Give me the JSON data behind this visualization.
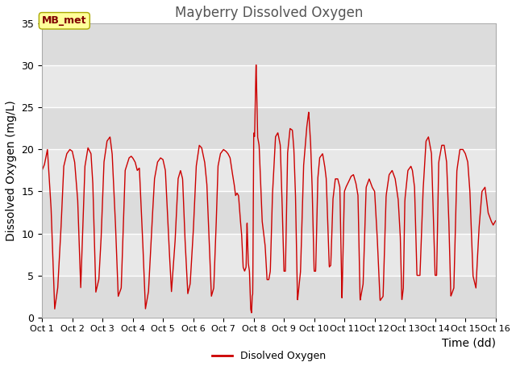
{
  "title": "Mayberry Dissolved Oxygen",
  "xlabel": "Time (dd)",
  "ylabel": "Dissolved Oxygen (mg/L)",
  "legend_label": "Disolved Oxygen",
  "station_label": "MB_met",
  "xlim": [
    1,
    16
  ],
  "ylim": [
    0,
    35
  ],
  "yticks": [
    0,
    5,
    10,
    15,
    20,
    25,
    30,
    35
  ],
  "xtick_positions": [
    1,
    2,
    3,
    4,
    5,
    6,
    7,
    8,
    9,
    10,
    11,
    12,
    13,
    14,
    15,
    16
  ],
  "xtick_labels": [
    "Oct 1",
    "Oct 2",
    "Oct 3",
    "Oct 4",
    "Oct 5",
    "Oct 6",
    "Oct 7",
    "Oct 8",
    "Oct 9",
    "Oct 10",
    "Oct 11",
    "Oct 12",
    "Oct 13",
    "Oct 14",
    "Oct 15",
    "Oct 16"
  ],
  "line_color": "#cc0000",
  "background_color": "#ffffff",
  "plot_bg_color": "#e8e8e8",
  "grid_color": "#ffffff",
  "band_color_light": "#dcdcdc",
  "band_color_dark": "#e8e8e8",
  "station_box_color": "#ffff99",
  "station_text_color": "#800000",
  "title_fontsize": 12,
  "axis_label_fontsize": 10,
  "tick_fontsize": 9,
  "t_points": [
    [
      1.0,
      17.5
    ],
    [
      1.08,
      18.2
    ],
    [
      1.18,
      20.0
    ],
    [
      1.3,
      13.0
    ],
    [
      1.42,
      1.0
    ],
    [
      1.52,
      3.5
    ],
    [
      1.62,
      10.0
    ],
    [
      1.72,
      18.0
    ],
    [
      1.82,
      19.5
    ],
    [
      1.92,
      20.0
    ],
    [
      2.0,
      19.8
    ],
    [
      2.08,
      18.5
    ],
    [
      2.18,
      14.0
    ],
    [
      2.28,
      3.5
    ],
    [
      2.42,
      18.0
    ],
    [
      2.52,
      20.2
    ],
    [
      2.62,
      19.5
    ],
    [
      2.68,
      16.0
    ],
    [
      2.78,
      3.0
    ],
    [
      2.88,
      4.5
    ],
    [
      2.95,
      9.0
    ],
    [
      3.05,
      18.5
    ],
    [
      3.15,
      21.0
    ],
    [
      3.25,
      21.5
    ],
    [
      3.32,
      19.5
    ],
    [
      3.42,
      12.0
    ],
    [
      3.52,
      2.5
    ],
    [
      3.62,
      3.5
    ],
    [
      3.75,
      17.5
    ],
    [
      3.88,
      19.0
    ],
    [
      3.95,
      19.2
    ],
    [
      4.0,
      19.0
    ],
    [
      4.08,
      18.5
    ],
    [
      4.15,
      17.5
    ],
    [
      4.22,
      17.8
    ],
    [
      4.32,
      10.0
    ],
    [
      4.42,
      1.0
    ],
    [
      4.52,
      3.0
    ],
    [
      4.62,
      10.0
    ],
    [
      4.72,
      16.5
    ],
    [
      4.82,
      18.5
    ],
    [
      4.92,
      19.0
    ],
    [
      5.0,
      18.8
    ],
    [
      5.08,
      17.5
    ],
    [
      5.18,
      10.0
    ],
    [
      5.28,
      3.0
    ],
    [
      5.4,
      9.0
    ],
    [
      5.5,
      16.5
    ],
    [
      5.58,
      17.5
    ],
    [
      5.65,
      16.5
    ],
    [
      5.72,
      10.0
    ],
    [
      5.82,
      2.8
    ],
    [
      5.9,
      4.0
    ],
    [
      6.0,
      10.0
    ],
    [
      6.1,
      18.0
    ],
    [
      6.2,
      20.5
    ],
    [
      6.28,
      20.2
    ],
    [
      6.38,
      18.5
    ],
    [
      6.45,
      16.0
    ],
    [
      6.52,
      10.0
    ],
    [
      6.6,
      2.5
    ],
    [
      6.68,
      3.5
    ],
    [
      6.75,
      10.0
    ],
    [
      6.82,
      18.0
    ],
    [
      6.9,
      19.5
    ],
    [
      7.0,
      20.0
    ],
    [
      7.08,
      19.8
    ],
    [
      7.15,
      19.5
    ],
    [
      7.22,
      19.0
    ],
    [
      7.28,
      17.5
    ],
    [
      7.35,
      16.0
    ],
    [
      7.4,
      14.5
    ],
    [
      7.45,
      14.8
    ],
    [
      7.5,
      14.5
    ],
    [
      7.55,
      12.0
    ],
    [
      7.6,
      10.0
    ],
    [
      7.65,
      6.0
    ],
    [
      7.7,
      5.5
    ],
    [
      7.75,
      6.0
    ],
    [
      7.78,
      11.5
    ],
    [
      7.82,
      6.5
    ],
    [
      7.86,
      5.5
    ],
    [
      7.9,
      1.0
    ],
    [
      7.93,
      0.5
    ],
    [
      7.95,
      2.5
    ],
    [
      7.97,
      2.8
    ],
    [
      8.0,
      22.0
    ],
    [
      8.03,
      21.5
    ],
    [
      8.08,
      30.5
    ],
    [
      8.13,
      21.5
    ],
    [
      8.18,
      20.5
    ],
    [
      8.28,
      11.5
    ],
    [
      8.38,
      8.5
    ],
    [
      8.44,
      4.5
    ],
    [
      8.5,
      4.5
    ],
    [
      8.55,
      5.5
    ],
    [
      8.62,
      14.5
    ],
    [
      8.72,
      21.5
    ],
    [
      8.8,
      22.0
    ],
    [
      8.88,
      20.5
    ],
    [
      8.93,
      15.0
    ],
    [
      9.0,
      5.5
    ],
    [
      9.05,
      5.5
    ],
    [
      9.12,
      19.5
    ],
    [
      9.2,
      22.5
    ],
    [
      9.28,
      22.3
    ],
    [
      9.33,
      20.0
    ],
    [
      9.38,
      15.0
    ],
    [
      9.45,
      2.0
    ],
    [
      9.55,
      5.5
    ],
    [
      9.65,
      18.0
    ],
    [
      9.75,
      22.5
    ],
    [
      9.82,
      24.5
    ],
    [
      9.88,
      21.0
    ],
    [
      9.93,
      16.0
    ],
    [
      10.0,
      5.5
    ],
    [
      10.05,
      5.5
    ],
    [
      10.12,
      16.5
    ],
    [
      10.18,
      19.0
    ],
    [
      10.28,
      19.5
    ],
    [
      10.35,
      18.0
    ],
    [
      10.4,
      16.5
    ],
    [
      10.5,
      6.0
    ],
    [
      10.55,
      6.2
    ],
    [
      10.62,
      14.0
    ],
    [
      10.7,
      16.5
    ],
    [
      10.78,
      16.5
    ],
    [
      10.85,
      15.5
    ],
    [
      10.92,
      2.0
    ],
    [
      11.0,
      15.0
    ],
    [
      11.05,
      15.5
    ],
    [
      11.12,
      16.0
    ],
    [
      11.22,
      16.8
    ],
    [
      11.3,
      17.0
    ],
    [
      11.38,
      16.0
    ],
    [
      11.45,
      14.5
    ],
    [
      11.52,
      2.0
    ],
    [
      11.62,
      4.0
    ],
    [
      11.72,
      15.5
    ],
    [
      11.82,
      16.5
    ],
    [
      11.92,
      15.5
    ],
    [
      12.0,
      15.0
    ],
    [
      12.08,
      10.0
    ],
    [
      12.18,
      2.0
    ],
    [
      12.28,
      2.5
    ],
    [
      12.38,
      14.5
    ],
    [
      12.48,
      17.0
    ],
    [
      12.58,
      17.5
    ],
    [
      12.68,
      16.5
    ],
    [
      12.78,
      14.0
    ],
    [
      12.85,
      9.5
    ],
    [
      12.9,
      2.0
    ],
    [
      12.95,
      3.5
    ],
    [
      13.0,
      14.0
    ],
    [
      13.1,
      17.5
    ],
    [
      13.2,
      18.0
    ],
    [
      13.25,
      17.5
    ],
    [
      13.32,
      15.5
    ],
    [
      13.4,
      5.0
    ],
    [
      13.5,
      5.0
    ],
    [
      13.6,
      15.0
    ],
    [
      13.7,
      21.0
    ],
    [
      13.78,
      21.5
    ],
    [
      13.88,
      19.5
    ],
    [
      13.93,
      13.5
    ],
    [
      14.0,
      5.0
    ],
    [
      14.05,
      5.0
    ],
    [
      14.12,
      18.5
    ],
    [
      14.22,
      20.5
    ],
    [
      14.3,
      20.5
    ],
    [
      14.38,
      18.5
    ],
    [
      14.45,
      12.0
    ],
    [
      14.52,
      2.5
    ],
    [
      14.62,
      3.5
    ],
    [
      14.72,
      17.5
    ],
    [
      14.82,
      20.0
    ],
    [
      14.92,
      20.0
    ],
    [
      15.0,
      19.5
    ],
    [
      15.08,
      18.5
    ],
    [
      15.15,
      15.0
    ],
    [
      15.25,
      5.0
    ],
    [
      15.35,
      3.5
    ],
    [
      15.45,
      10.5
    ],
    [
      15.55,
      15.0
    ],
    [
      15.65,
      15.5
    ],
    [
      15.75,
      12.5
    ],
    [
      15.85,
      11.5
    ],
    [
      15.92,
      11.0
    ],
    [
      16.0,
      11.5
    ]
  ]
}
